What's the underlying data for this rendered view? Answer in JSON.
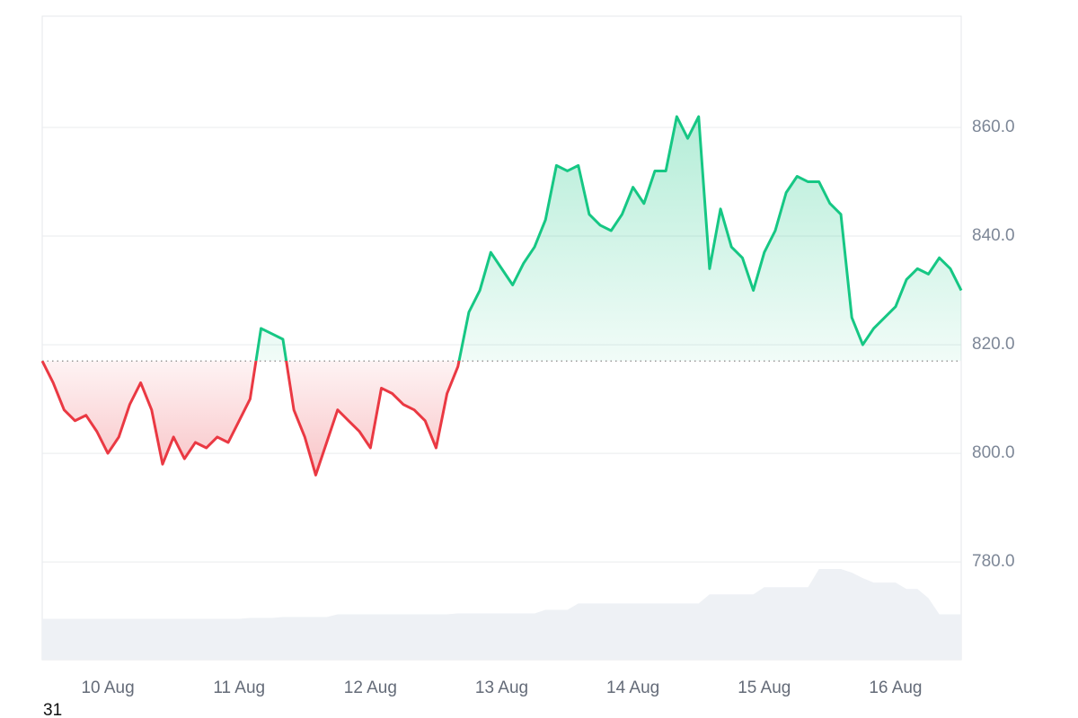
{
  "chart_data": {
    "type": "line",
    "annotation": "31",
    "categories": [
      null,
      null,
      null,
      null,
      null,
      null,
      "10 Aug",
      null,
      null,
      null,
      null,
      null,
      null,
      null,
      null,
      null,
      null,
      null,
      "11 Aug",
      null,
      null,
      null,
      null,
      null,
      null,
      null,
      null,
      null,
      null,
      null,
      "12 Aug",
      null,
      null,
      null,
      null,
      null,
      null,
      null,
      null,
      null,
      null,
      null,
      "13 Aug",
      null,
      null,
      null,
      null,
      null,
      null,
      null,
      null,
      null,
      null,
      null,
      "14 Aug",
      null,
      null,
      null,
      null,
      null,
      null,
      null,
      null,
      null,
      null,
      null,
      "15 Aug",
      null,
      null,
      null,
      null,
      null,
      null,
      null,
      null,
      null,
      null,
      null,
      "16 Aug",
      null,
      null,
      null,
      null,
      null,
      null
    ],
    "values": [
      817,
      813,
      808,
      806,
      807,
      804,
      800,
      803,
      809,
      813,
      808,
      798,
      803,
      799,
      802,
      801,
      803,
      802,
      806,
      810,
      823,
      822,
      821,
      808,
      803,
      796,
      802,
      808,
      806,
      804,
      801,
      812,
      811,
      809,
      808,
      806,
      801,
      811,
      816,
      826,
      830,
      837,
      834,
      831,
      835,
      838,
      843,
      853,
      852,
      853,
      844,
      842,
      841,
      844,
      849,
      846,
      852,
      852,
      862,
      858,
      862,
      834,
      845,
      838,
      836,
      830,
      837,
      841,
      848,
      851,
      850,
      850,
      846,
      844,
      825,
      820,
      823,
      825,
      827,
      832,
      834,
      833,
      836,
      834,
      830
    ],
    "color": "#16c784",
    "below_color": "#ea3943",
    "baseline": 817,
    "volume": [
      45,
      45,
      45,
      45,
      45,
      45,
      45,
      45,
      45,
      45,
      45,
      45,
      45,
      45,
      45,
      45,
      45,
      45,
      45,
      46,
      46,
      46,
      47,
      47,
      47,
      47,
      47,
      50,
      50,
      50,
      50,
      50,
      50,
      50,
      50,
      50,
      50,
      50,
      51,
      51,
      51,
      51,
      51,
      51,
      51,
      51,
      55,
      55,
      55,
      62,
      62,
      62,
      62,
      62,
      62,
      62,
      62,
      62,
      62,
      62,
      62,
      72,
      72,
      72,
      72,
      72,
      80,
      80,
      80,
      80,
      80,
      100,
      100,
      100,
      96,
      90,
      85,
      85,
      85,
      78,
      78,
      68,
      50,
      50,
      50
    ],
    "volume_color": "#eef1f5",
    "ylim": [
      762,
      880.5
    ],
    "yticks": [
      {
        "value": 780,
        "label": "780.0"
      },
      {
        "value": 800,
        "label": "800.0"
      },
      {
        "value": 820,
        "label": "820.0"
      },
      {
        "value": 840,
        "label": "840.0"
      },
      {
        "value": 860,
        "label": "860.0"
      }
    ],
    "grid": true
  }
}
